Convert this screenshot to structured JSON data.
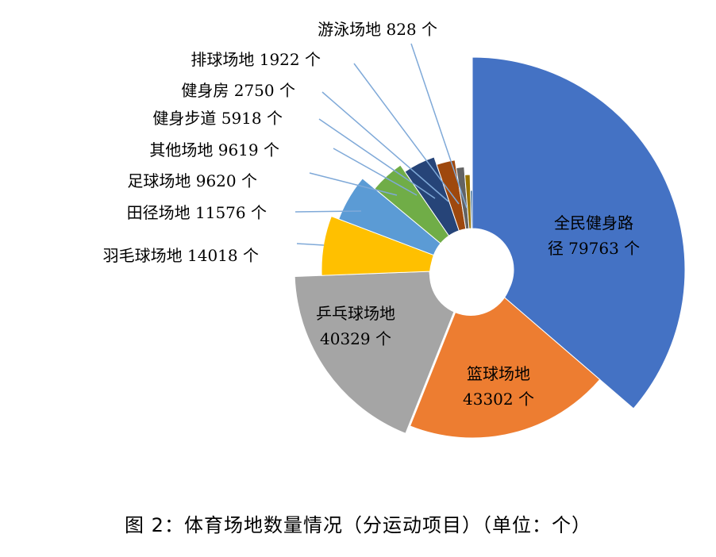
{
  "caption": "图 2：体育场地数量情况（分运动项目）（单位：个）",
  "chart_data": {
    "type": "pie",
    "variant": "doughnut-exploded",
    "unit": "个",
    "series": [
      {
        "name": "",
        "values": [
          79763,
          43302,
          40329,
          14018,
          11576,
          9620,
          9619,
          5918,
          2750,
          1922,
          828
        ]
      }
    ],
    "categories": [
      "全民健身路径",
      "篮球场地",
      "乒乓球场地",
      "羽毛球场地",
      "田径场地",
      "足球场地",
      "其他场地",
      "健身步道",
      "健身房",
      "排球场地",
      "游泳场地"
    ],
    "labels": [
      [
        "全民健身路",
        "径 79763 个"
      ],
      [
        "篮球场地",
        "43302 个"
      ],
      [
        "乒乓球场地",
        "40329 个"
      ],
      [
        "羽毛球场地 14018 个"
      ],
      [
        "田径场地 11576 个"
      ],
      [
        "足球场地 9620 个"
      ],
      [
        "其他场地  9619 个"
      ],
      [
        "健身步道 5918 个"
      ],
      [
        "健身房 2750 个"
      ],
      [
        "排球场地  1922 个"
      ],
      [
        "游泳场地 828 个"
      ]
    ],
    "colors": [
      "#4472C4",
      "#ED7D31",
      "#A5A5A5",
      "#FFC000",
      "#5B9BD5",
      "#70AD47",
      "#264478",
      "#9E480E",
      "#636363",
      "#997300",
      "#255E91"
    ],
    "legend": "none",
    "grid": false
  }
}
